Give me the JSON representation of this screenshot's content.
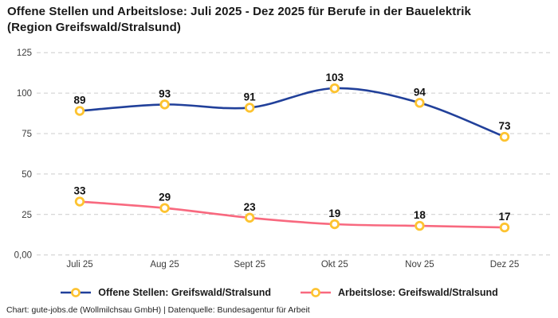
{
  "title_line1": "Offene Stellen und Arbeitslose: Juli 2025 - Dez 2025 für Berufe in der Bauelektrik",
  "title_line2": "(Region Greifswald/Stralsund)",
  "footer": "Chart: gute-jobs.de (Wollmilchsau GmbH) | Datenquelle: Bundesagentur für Arbeit",
  "colors": {
    "series_open_positions": "#21409a",
    "series_unemployed": "#f8697f",
    "marker_ring": "#fdc330",
    "marker_fill": "#ffffff",
    "gridline": "#cccccc",
    "tick_text": "#3c3c3c",
    "value_label_text": "#111111"
  },
  "chart_data": {
    "type": "line",
    "categories": [
      "Juli 25",
      "Aug 25",
      "Sept 25",
      "Okt 25",
      "Nov 25",
      "Dez 25"
    ],
    "series": [
      {
        "name": "Offene Stellen: Greifswald/Stralsund",
        "color": "#21409a",
        "values": [
          89,
          93,
          91,
          103,
          94,
          73
        ]
      },
      {
        "name": "Arbeitslose: Greifswald/Stralsund",
        "color": "#f8697f",
        "values": [
          33,
          29,
          23,
          19,
          18,
          17
        ]
      }
    ],
    "y_ticks": [
      {
        "value": 125,
        "label": "125"
      },
      {
        "value": 100,
        "label": "100"
      },
      {
        "value": 75,
        "label": "75"
      },
      {
        "value": 50,
        "label": "50"
      },
      {
        "value": 25,
        "label": "25"
      },
      {
        "value": 0,
        "label": "0,00"
      }
    ],
    "ylim": [
      0,
      125
    ],
    "grid": "horizontal-dashed",
    "line_style": "smooth-spline",
    "marker": "ring",
    "data_labels": "above-points",
    "legend_position": "bottom",
    "title": "Offene Stellen und Arbeitslose: Juli 2025 - Dez 2025 für Berufe in der Bauelektrik (Region Greifswald/Stralsund)"
  }
}
